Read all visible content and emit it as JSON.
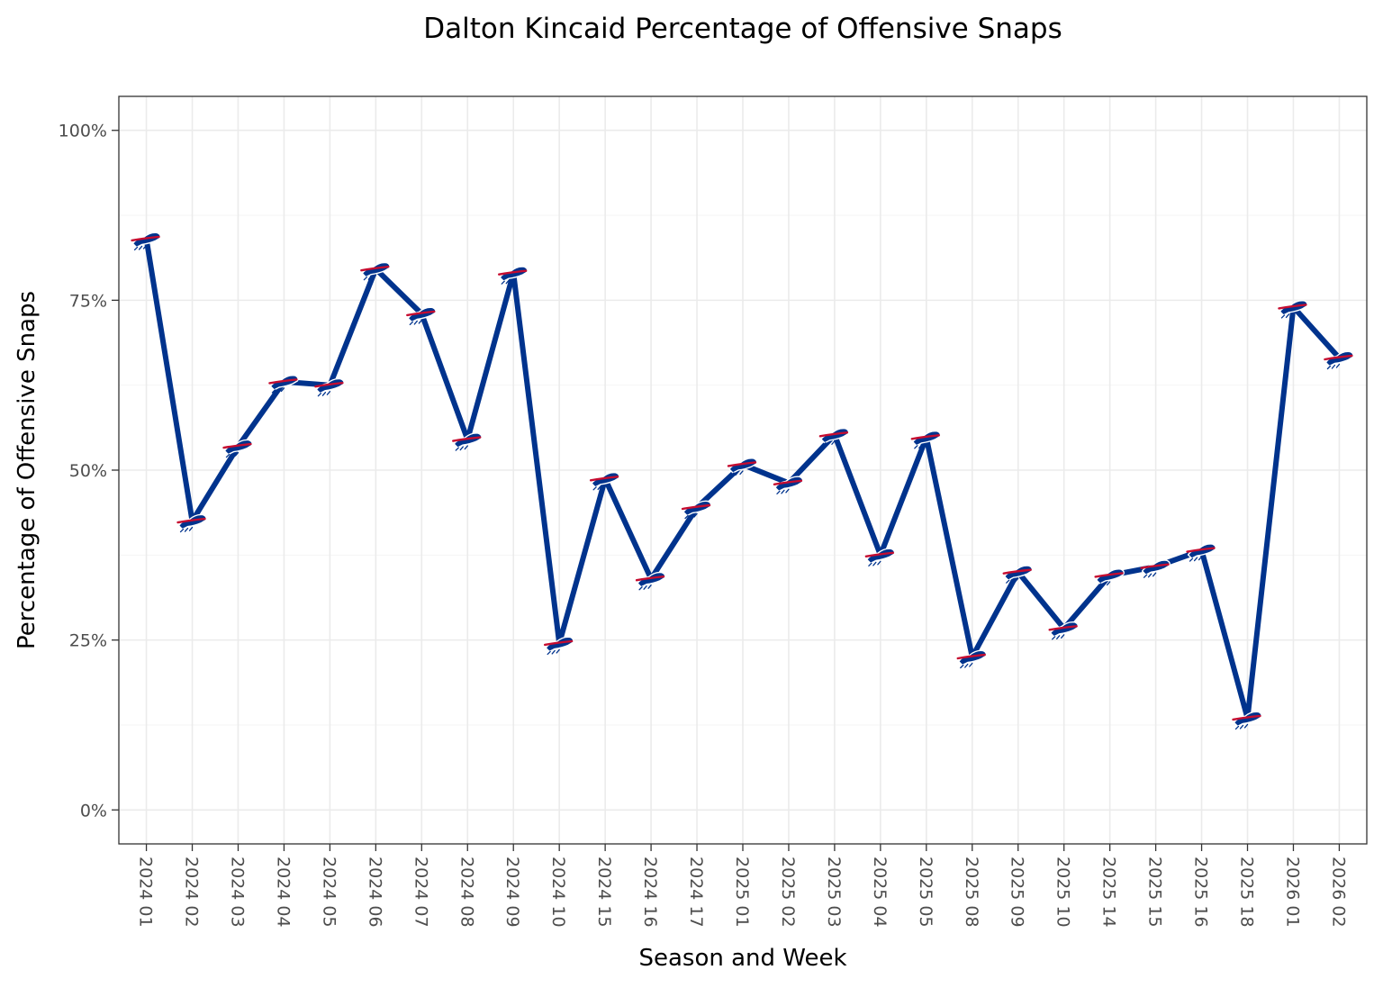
{
  "chart_data": {
    "type": "line",
    "title": "Dalton Kincaid Percentage of Offensive Snaps",
    "xlabel": "Season and Week",
    "ylabel": "Percentage of Offensive Snaps",
    "categories": [
      "2024 01",
      "2024 02",
      "2024 03",
      "2024 04",
      "2024 05",
      "2024 06",
      "2024 07",
      "2024 08",
      "2024 09",
      "2024 10",
      "2024 15",
      "2024 16",
      "2024 17",
      "2025 01",
      "2025 02",
      "2025 03",
      "2025 04",
      "2025 05",
      "2025 08",
      "2025 09",
      "2025 10",
      "2025 14",
      "2025 15",
      "2025 16",
      "2025 18",
      "2026 01",
      "2026 02"
    ],
    "series": [
      {
        "values": [
          0.84,
          0.425,
          0.535,
          0.63,
          0.625,
          0.796,
          0.73,
          0.545,
          0.79,
          0.245,
          0.487,
          0.34,
          0.445,
          0.508,
          0.481,
          0.552,
          0.375,
          0.548,
          0.225,
          0.35,
          0.267,
          0.345,
          0.358,
          0.382,
          0.135,
          0.74,
          0.665
        ]
      }
    ],
    "ylim": [
      -0.05,
      1.05
    ],
    "yticks": [
      0,
      0.25,
      0.5,
      0.75,
      1.0
    ],
    "ytick_labels": [
      "0%",
      "25%",
      "50%",
      "75%",
      "100%"
    ],
    "grid": true,
    "line_color": "#00338D",
    "marker": "buffalo-bills-logo-icon",
    "logo_colors": {
      "blue": "#00338D",
      "red": "#C60C30",
      "white": "#FFFFFF"
    }
  }
}
